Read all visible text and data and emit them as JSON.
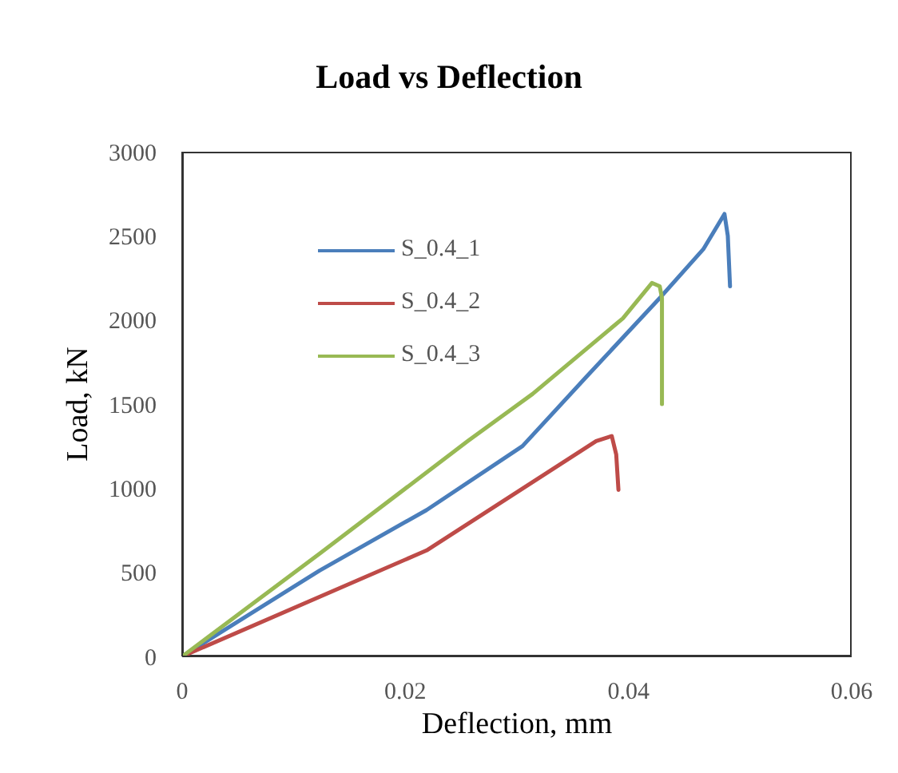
{
  "chart_data": {
    "type": "line",
    "title": "Load vs Deflection",
    "xlabel": "Deflection, mm",
    "ylabel": "Load, kN",
    "xlim": [
      0,
      0.06
    ],
    "xticks": [
      {
        "value": 0,
        "label": "0"
      },
      0.02,
      0.04,
      0.06
    ],
    "ylim": [
      0,
      3000
    ],
    "yticks": [
      0,
      500,
      1000,
      1500,
      2000,
      2500,
      3000
    ],
    "grid": false,
    "legend": "top left",
    "marker": "none",
    "line_style": "solid",
    "series": [
      {
        "name": "S_0.4_1",
        "color": "#4a7ebb",
        "x": [
          0,
          0.0123,
          0.0219,
          0.0305,
          0.0362,
          0.0428,
          0.0467,
          0.0486,
          0.0489,
          0.0491
        ],
        "values": [
          0,
          510,
          870,
          1250,
          1660,
          2130,
          2420,
          2630,
          2500,
          2200
        ]
      },
      {
        "name": "S_0.4_2",
        "color": "#be4b48",
        "x": [
          0,
          0.0219,
          0.0371,
          0.0385,
          0.0389,
          0.0391
        ],
        "values": [
          0,
          630,
          1280,
          1310,
          1200,
          990
        ]
      },
      {
        "name": "S_0.4_3",
        "color": "#98b954",
        "x": [
          0,
          0.0123,
          0.0256,
          0.0314,
          0.0395,
          0.0421,
          0.0428,
          0.043,
          0.043
        ],
        "values": [
          0,
          610,
          1280,
          1560,
          2010,
          2220,
          2200,
          2130,
          1500
        ]
      }
    ]
  }
}
